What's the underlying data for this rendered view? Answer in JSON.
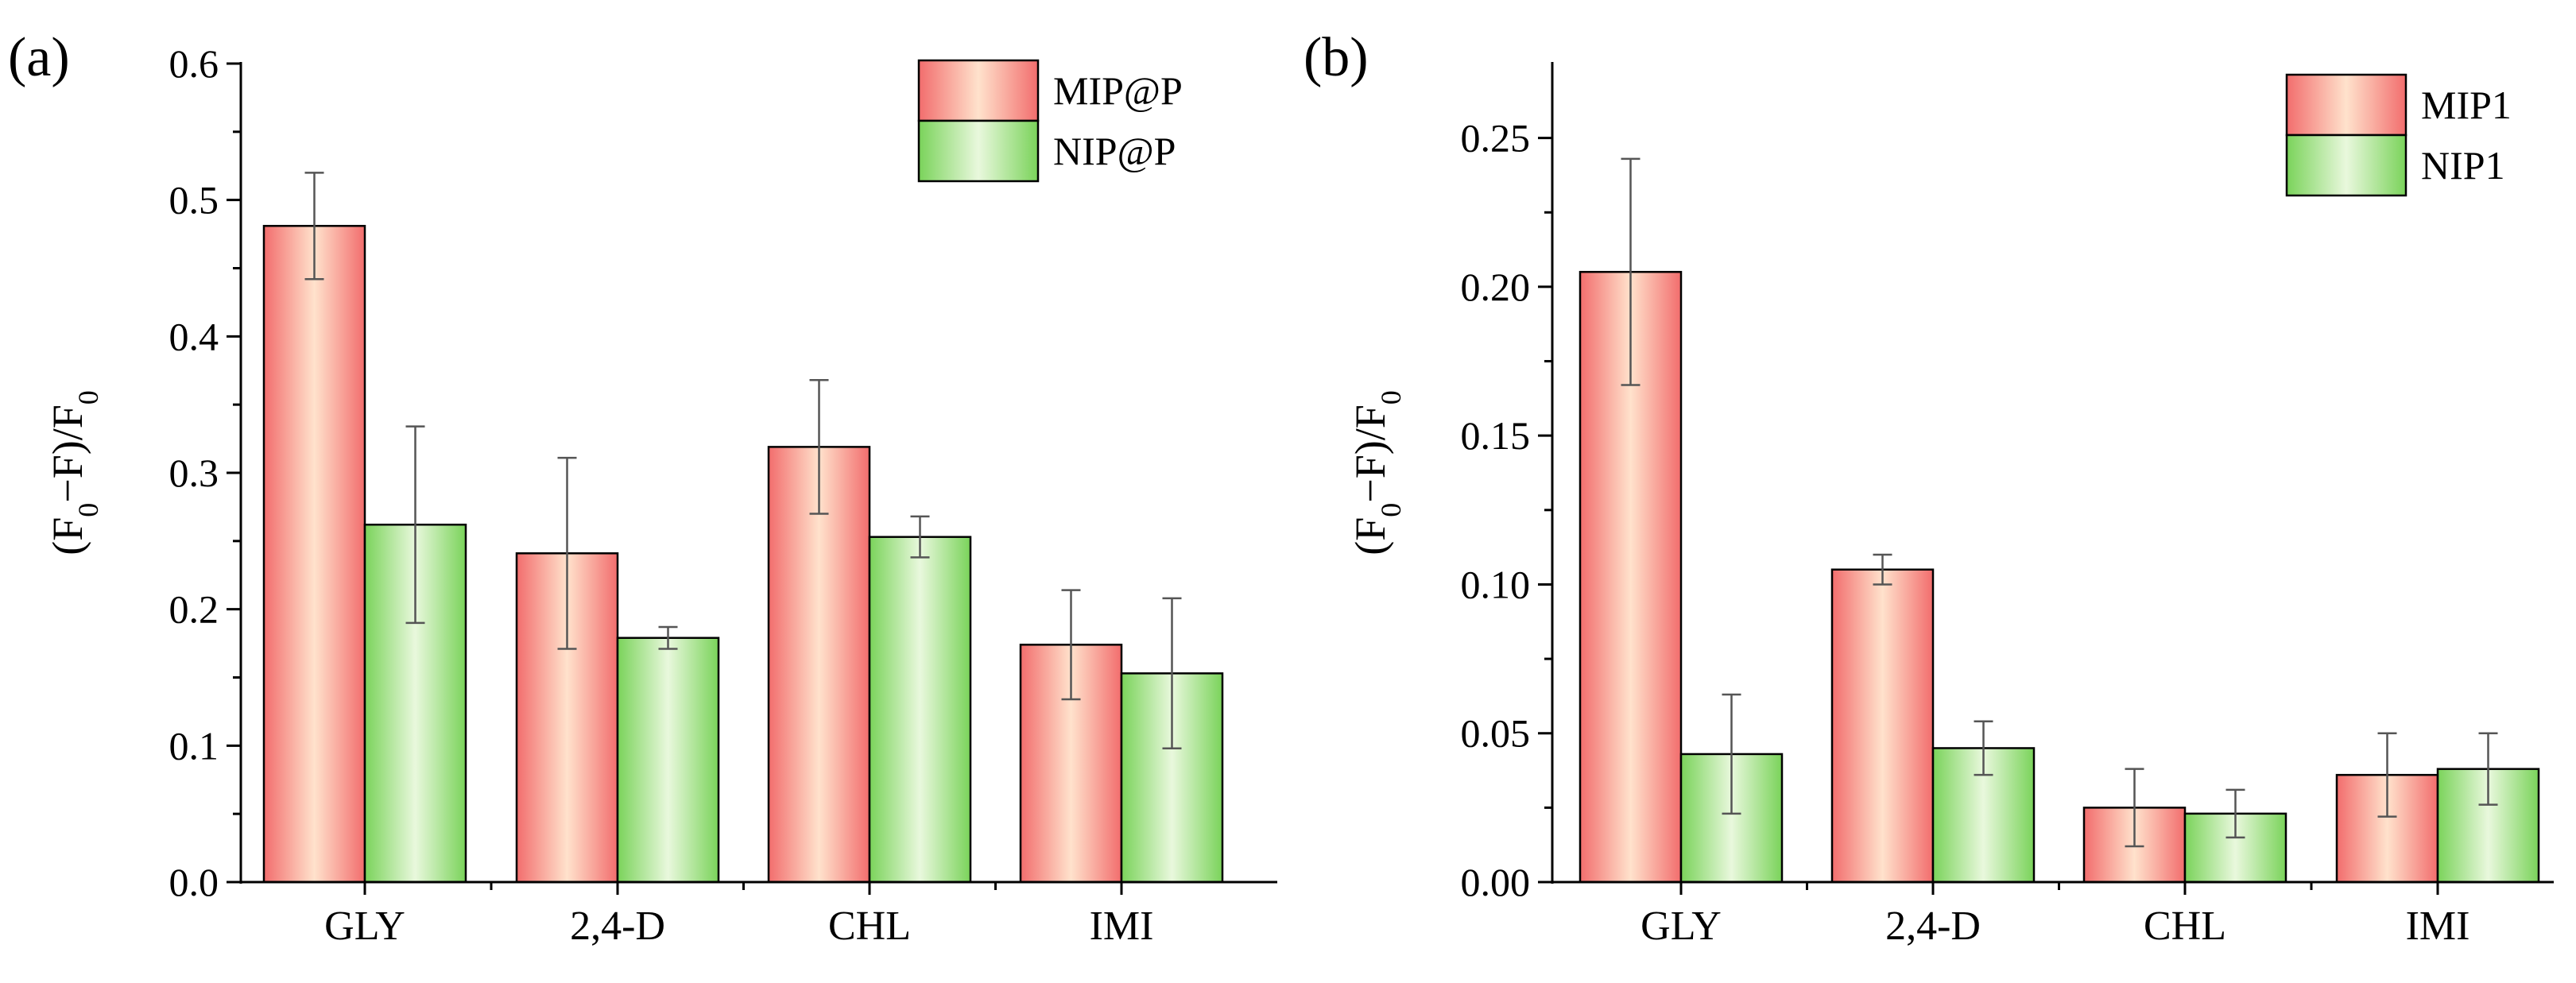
{
  "colors": {
    "mip_dark": "#f26d6d",
    "mip_light": "#ffe2cc",
    "nip_dark": "#7ad35a",
    "nip_light": "#e9f8dd",
    "axis": "#000000",
    "error_bar": "#555555"
  },
  "chart_data": [
    {
      "type": "bar",
      "panel_label": "(a)",
      "categories": [
        "GLY",
        "2,4-D",
        "CHL",
        "IMI"
      ],
      "series": [
        {
          "name": "MIP@P",
          "values": [
            0.481,
            0.241,
            0.319,
            0.174
          ],
          "errors": [
            0.039,
            0.07,
            0.049,
            0.04
          ]
        },
        {
          "name": "NIP@P",
          "values": [
            0.262,
            0.179,
            0.253,
            0.153
          ],
          "errors": [
            0.072,
            0.008,
            0.015,
            0.055
          ]
        }
      ],
      "ylabel": {
        "prefix": "(F",
        "sub1": "0",
        "mid": "−F)/F",
        "sub2": "0"
      },
      "ylim": [
        0,
        0.6
      ],
      "yticks": [
        "0.0",
        "0.1",
        "0.2",
        "0.3",
        "0.4",
        "0.5",
        "0.6"
      ],
      "ytick_values": [
        0,
        0.1,
        0.2,
        0.3,
        0.4,
        0.5,
        0.6
      ],
      "legend": "top-right",
      "grid": false
    },
    {
      "type": "bar",
      "panel_label": "(b)",
      "categories": [
        "GLY",
        "2,4-D",
        "CHL",
        "IMI"
      ],
      "series": [
        {
          "name": "MIP1",
          "values": [
            0.205,
            0.105,
            0.025,
            0.036
          ],
          "errors": [
            0.038,
            0.005,
            0.013,
            0.014
          ]
        },
        {
          "name": "NIP1",
          "values": [
            0.043,
            0.045,
            0.023,
            0.038
          ],
          "errors": [
            0.02,
            0.009,
            0.008,
            0.012
          ]
        }
      ],
      "ylabel": {
        "prefix": "(F",
        "sub1": "0",
        "mid": "−F)/F",
        "sub2": "0"
      },
      "ylim": [
        0,
        0.275
      ],
      "yticks": [
        "0.00",
        "0.05",
        "0.10",
        "0.15",
        "0.20",
        "0.25"
      ],
      "ytick_values": [
        0,
        0.05,
        0.1,
        0.15,
        0.2,
        0.25
      ],
      "legend": "top-right",
      "grid": false
    }
  ]
}
